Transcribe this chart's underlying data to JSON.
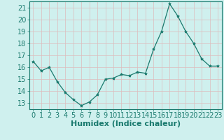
{
  "x": [
    0,
    1,
    2,
    3,
    4,
    5,
    6,
    7,
    8,
    9,
    10,
    11,
    12,
    13,
    14,
    15,
    16,
    17,
    18,
    19,
    20,
    21,
    22,
    23
  ],
  "y": [
    16.5,
    15.7,
    16.0,
    14.8,
    13.9,
    13.3,
    12.8,
    13.1,
    13.7,
    15.0,
    15.1,
    15.4,
    15.3,
    15.6,
    15.5,
    17.5,
    19.0,
    21.3,
    20.3,
    19.0,
    18.0,
    16.7,
    16.1,
    16.1
  ],
  "line_color": "#1a7a6e",
  "marker": "*",
  "marker_size": 3,
  "bg_color": "#cff0ee",
  "grid_color": "#ddbcbc",
  "xlabel": "Humidex (Indice chaleur)",
  "xlim": [
    -0.5,
    23.5
  ],
  "ylim": [
    12.5,
    21.5
  ],
  "yticks": [
    13,
    14,
    15,
    16,
    17,
    18,
    19,
    20,
    21
  ],
  "xticks": [
    0,
    1,
    2,
    3,
    4,
    5,
    6,
    7,
    8,
    9,
    10,
    11,
    12,
    13,
    14,
    15,
    16,
    17,
    18,
    19,
    20,
    21,
    22,
    23
  ],
  "tick_color": "#1a7a6e",
  "label_color": "#1a7a6e",
  "font_size": 7,
  "xlabel_font_size": 8
}
